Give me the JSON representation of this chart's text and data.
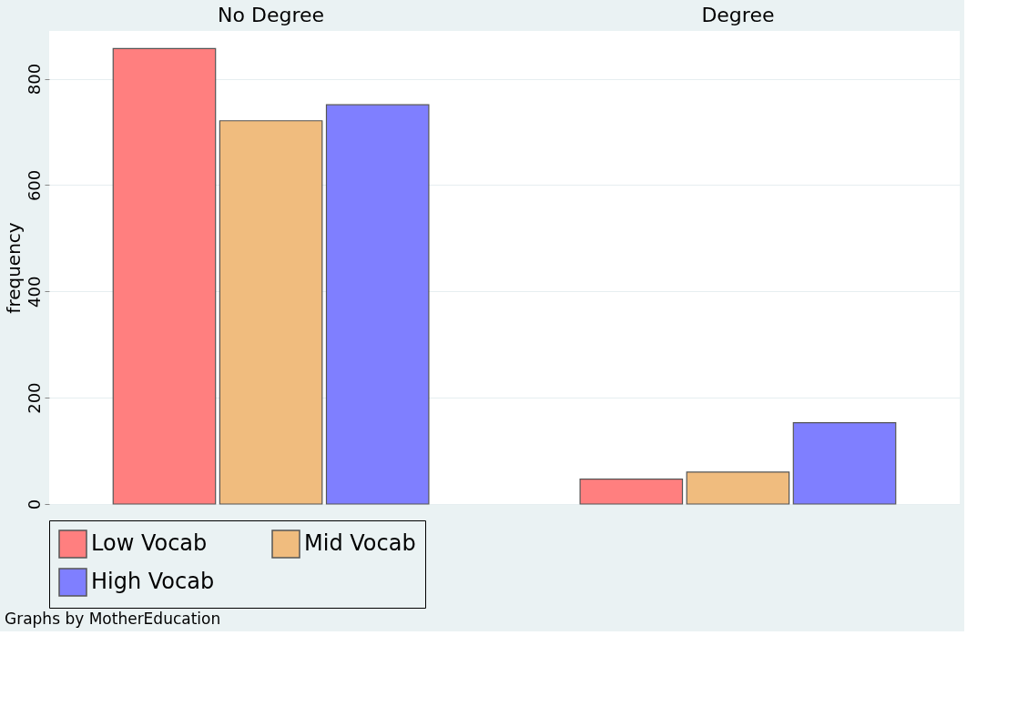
{
  "chart_data": {
    "type": "bar",
    "ylabel": "frequency",
    "categories": [
      "No Degree",
      "Degree"
    ],
    "ylim": [
      0,
      890
    ],
    "yticks": [
      0,
      200,
      400,
      600,
      800
    ],
    "grid": "y",
    "legend": "bottom",
    "annotations": [
      "Graphs by MotherEducation"
    ],
    "series": [
      {
        "name": "Low Vocab",
        "color": "#ff7f7f",
        "values": [
          857,
          47
        ]
      },
      {
        "name": "Mid Vocab",
        "color": "#f0bc7e",
        "values": [
          721,
          60
        ]
      },
      {
        "name": "High Vocab",
        "color": "#7f7fff",
        "values": [
          751,
          153
        ]
      }
    ]
  }
}
